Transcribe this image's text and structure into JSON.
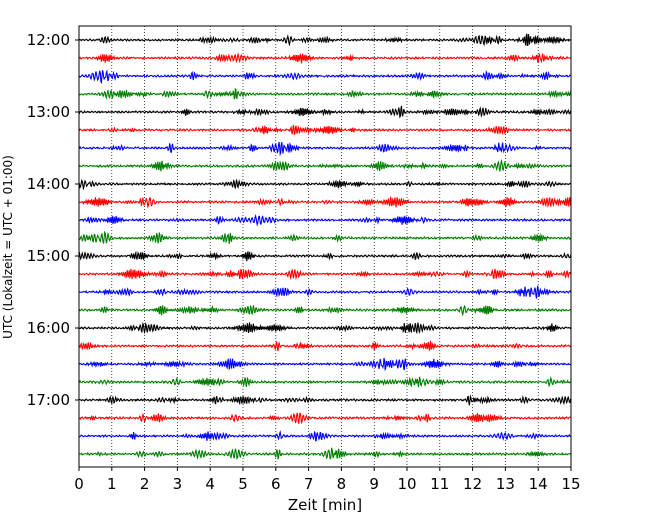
{
  "chart_data": {
    "type": "line",
    "title": "",
    "xlabel": "Zeit  [min]",
    "ylabel": "UTC (Lokalzeit = UTC + 01:00)",
    "xlim": [
      0,
      15
    ],
    "x_ticks": [
      "0",
      "1",
      "2",
      "3",
      "4",
      "5",
      "6",
      "7",
      "8",
      "9",
      "10",
      "11",
      "12",
      "13",
      "14",
      "15"
    ],
    "y_ticks": [
      "12:00",
      "13:00",
      "14:00",
      "15:00",
      "16:00",
      "17:00"
    ],
    "trace_start": "12:00",
    "trace_end": "17:45",
    "trace_interval_min": 15,
    "trace_colors": [
      "#000000",
      "#ff0000",
      "#0000ff",
      "#007f00"
    ],
    "grid_x": true,
    "grid_style": "dotted"
  }
}
